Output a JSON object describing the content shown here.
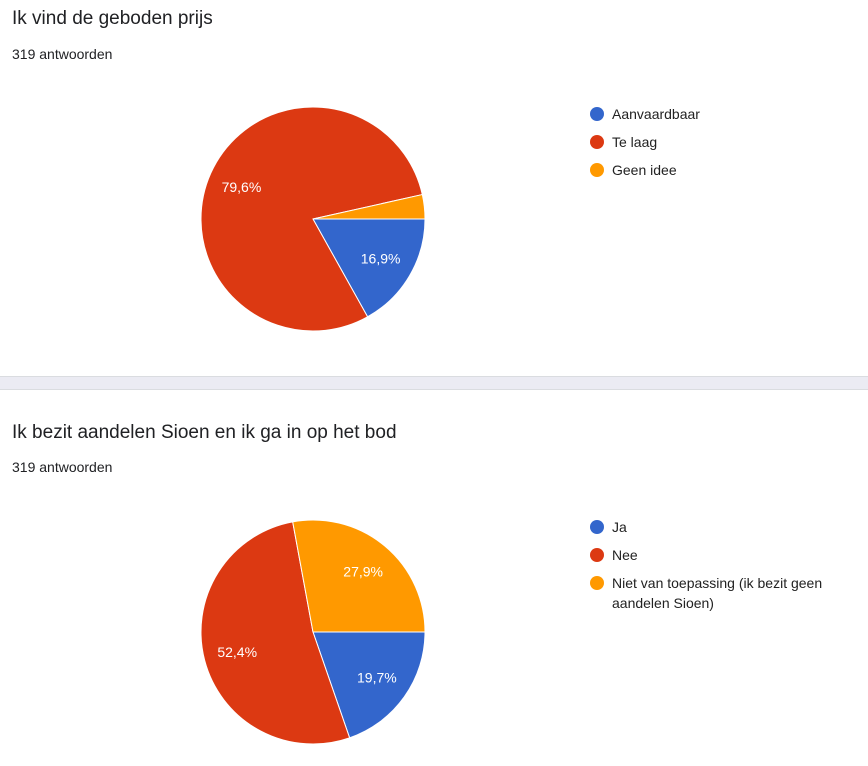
{
  "chart_data": [
    {
      "type": "pie",
      "title": "Ik vind de geboden prijs",
      "subtitle": "319 antwoorden",
      "legend_position": "right",
      "slices": [
        {
          "name": "Aanvaardbaar",
          "value": 16.9,
          "label": "16,9%",
          "color": "#3366cc"
        },
        {
          "name": "Te laag",
          "value": 79.6,
          "label": "79,6%",
          "color": "#dc3912"
        },
        {
          "name": "Geen idee",
          "value": 3.5,
          "label": "",
          "color": "#ff9900"
        }
      ]
    },
    {
      "type": "pie",
      "title": "Ik bezit aandelen Sioen en ik ga in op het bod",
      "subtitle": "319 antwoorden",
      "legend_position": "right",
      "slices": [
        {
          "name": "Ja",
          "value": 19.7,
          "label": "19,7%",
          "color": "#3366cc"
        },
        {
          "name": "Nee",
          "value": 52.4,
          "label": "52,4%",
          "color": "#dc3912"
        },
        {
          "name": "Niet van toepassing (ik bezit geen aandelen Sioen)",
          "value": 27.9,
          "label": "27,9%",
          "color": "#ff9900"
        }
      ]
    }
  ]
}
